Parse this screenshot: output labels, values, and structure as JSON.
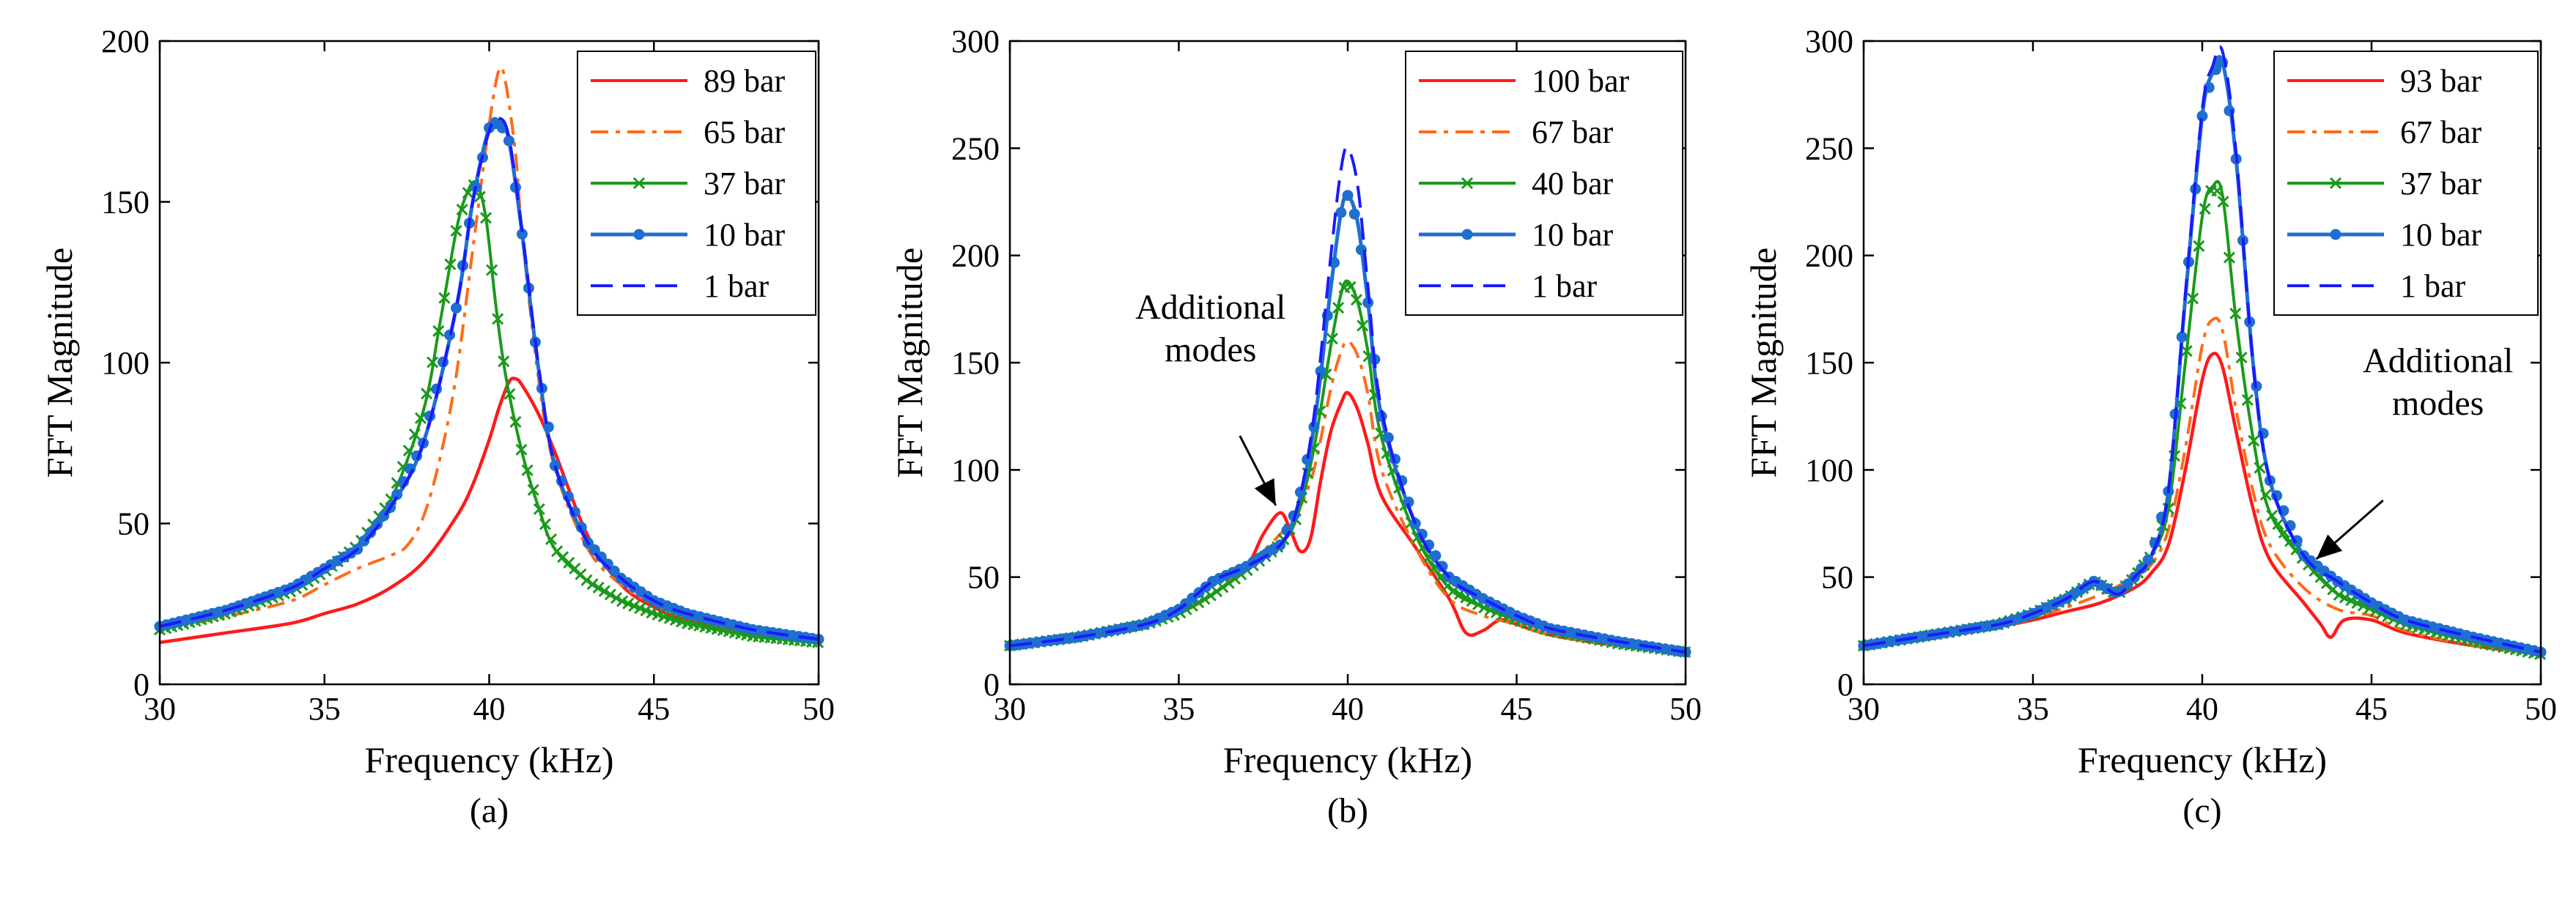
{
  "chart_data": [
    {
      "type": "line",
      "panel_label": "(a)",
      "xlabel": "Frequency (kHz)",
      "ylabel": "FFT Magnitude",
      "xlim": [
        30,
        50
      ],
      "ylim": [
        0,
        200
      ],
      "xticks": [
        30,
        35,
        40,
        45,
        50
      ],
      "yticks": [
        0,
        50,
        100,
        150,
        200
      ],
      "legend_position": "top-right",
      "annotation": null,
      "series": [
        {
          "name": "89 bar",
          "style": "solid",
          "marker": "none",
          "color": "#ff1a1a",
          "x": [
            30,
            32,
            34,
            35,
            36,
            37,
            38,
            39,
            39.5,
            40,
            40.3,
            40.6,
            40.8,
            41,
            41.5,
            42,
            43,
            44,
            45,
            46,
            48,
            50
          ],
          "y": [
            13,
            16,
            19,
            22,
            25,
            30,
            38,
            52,
            62,
            76,
            86,
            94,
            95,
            93,
            84,
            72,
            46,
            31,
            24,
            20,
            16,
            13
          ]
        },
        {
          "name": "65 bar",
          "style": "dashdot",
          "marker": "none",
          "color": "#ff6a1a",
          "x": [
            30,
            32,
            34,
            35,
            36,
            37,
            37.5,
            38,
            38.5,
            39,
            39.5,
            40,
            40.3,
            40.5,
            40.8,
            41,
            41.5,
            42,
            43,
            44,
            45,
            46,
            48,
            50
          ],
          "y": [
            17,
            21,
            26,
            31,
            36,
            40,
            43,
            52,
            70,
            96,
            135,
            174,
            191,
            187,
            165,
            140,
            95,
            67,
            42,
            31,
            25,
            21,
            16,
            13
          ]
        },
        {
          "name": "37 bar",
          "style": "solid",
          "marker": "x",
          "color": "#1a9a1a",
          "x": [
            30,
            32,
            34,
            35,
            36,
            37,
            38,
            38.5,
            39,
            39.3,
            39.6,
            39.9,
            40.2,
            40.5,
            41,
            41.5,
            42,
            43,
            44,
            45,
            46,
            48,
            50
          ],
          "y": [
            17,
            22,
            29,
            35,
            43,
            57,
            85,
            112,
            141,
            152,
            156,
            145,
            118,
            96,
            72,
            55,
            42,
            32,
            26,
            22,
            19,
            15,
            13
          ]
        },
        {
          "name": "10 bar",
          "style": "solid",
          "marker": "o",
          "color": "#1f6fd0",
          "x": [
            30,
            32,
            34,
            35,
            36,
            37,
            38,
            39,
            39.5,
            40,
            40.3,
            40.6,
            41,
            41.5,
            42,
            43,
            44,
            45,
            46,
            48,
            50
          ],
          "y": [
            18,
            23,
            30,
            36,
            42,
            55,
            75,
            117,
            150,
            173,
            175,
            169,
            140,
            98,
            68,
            44,
            33,
            26,
            22,
            17,
            14
          ]
        },
        {
          "name": "1 bar",
          "style": "dashed",
          "marker": "none",
          "color": "#1a1aff",
          "x": [
            30,
            32,
            34,
            35,
            36,
            37,
            38,
            39,
            39.5,
            40,
            40.3,
            40.6,
            41,
            41.5,
            42,
            43,
            44,
            45,
            46,
            48,
            50
          ],
          "y": [
            18,
            23,
            30,
            36,
            42,
            55,
            75,
            117,
            150,
            172,
            176,
            170,
            141,
            99,
            68,
            44,
            33,
            26,
            22,
            17,
            14
          ]
        }
      ]
    },
    {
      "type": "line",
      "panel_label": "(b)",
      "xlabel": "Frequency (kHz)",
      "ylabel": "FFT Magnitude",
      "xlim": [
        30,
        50
      ],
      "ylim": [
        0,
        300
      ],
      "xticks": [
        30,
        35,
        40,
        45,
        50
      ],
      "yticks": [
        0,
        50,
        100,
        150,
        200,
        250,
        300
      ],
      "legend_position": "top-right",
      "annotation": {
        "lines": [
          "Additional",
          "modes"
        ],
        "x": 38,
        "y": 80
      },
      "series": [
        {
          "name": "100 bar",
          "style": "solid",
          "marker": "none",
          "color": "#ff1a1a",
          "x": [
            30,
            32,
            34,
            35,
            36,
            37,
            37.5,
            38,
            38.3,
            38.6,
            38.9,
            39.2,
            39.5,
            39.8,
            40,
            40.3,
            40.6,
            41,
            42,
            43,
            43.5,
            44,
            44.5,
            45,
            46,
            48,
            50
          ],
          "y": [
            18,
            22,
            28,
            33,
            42,
            55,
            70,
            80,
            72,
            62,
            68,
            95,
            118,
            131,
            136,
            128,
            112,
            88,
            64,
            40,
            24,
            25,
            30,
            28,
            23,
            18,
            15
          ]
        },
        {
          "name": "67 bar",
          "style": "dashdot",
          "marker": "none",
          "color": "#ff6a1a",
          "x": [
            30,
            32,
            34,
            35,
            36,
            37,
            38,
            38.5,
            39,
            39.5,
            39.8,
            40,
            40.3,
            40.6,
            41,
            42,
            43,
            44,
            45,
            46,
            48,
            50
          ],
          "y": [
            18,
            22,
            28,
            33,
            42,
            55,
            70,
            80,
            100,
            138,
            155,
            160,
            153,
            135,
            100,
            64,
            40,
            32,
            28,
            23,
            18,
            15
          ]
        },
        {
          "name": "40 bar",
          "style": "solid",
          "marker": "x",
          "color": "#1a9a1a",
          "x": [
            30,
            32,
            34,
            35,
            36,
            37,
            38,
            38.5,
            39,
            39.5,
            39.8,
            40,
            40.3,
            40.6,
            41,
            42,
            43,
            44,
            45,
            46,
            48,
            50
          ],
          "y": [
            18,
            22,
            28,
            33,
            42,
            53,
            65,
            78,
            110,
            158,
            182,
            188,
            178,
            155,
            115,
            70,
            45,
            36,
            30,
            25,
            19,
            15
          ]
        },
        {
          "name": "10 bar",
          "style": "solid",
          "marker": "o",
          "color": "#1f6fd0",
          "x": [
            30,
            32,
            34,
            35,
            36,
            37,
            38,
            38.5,
            39,
            39.5,
            39.8,
            40,
            40.3,
            40.6,
            41,
            42,
            43,
            44,
            45,
            46,
            48,
            50
          ],
          "y": [
            18,
            22,
            28,
            35,
            48,
            55,
            65,
            82,
            120,
            185,
            220,
            228,
            215,
            178,
            125,
            75,
            50,
            40,
            32,
            26,
            20,
            15
          ]
        },
        {
          "name": "1 bar",
          "style": "dashed",
          "marker": "none",
          "color": "#1a1aff",
          "x": [
            30,
            32,
            34,
            35,
            36,
            37,
            38,
            38.5,
            39,
            39.5,
            39.8,
            40,
            40.3,
            40.6,
            41,
            42,
            43,
            44,
            45,
            46,
            48,
            50
          ],
          "y": [
            18,
            22,
            28,
            35,
            48,
            55,
            65,
            82,
            125,
            200,
            240,
            250,
            232,
            185,
            128,
            75,
            50,
            40,
            32,
            26,
            20,
            15
          ]
        }
      ]
    },
    {
      "type": "line",
      "panel_label": "(c)",
      "xlabel": "Frequency (kHz)",
      "ylabel": "FFT Magnitude",
      "xlim": [
        30,
        50
      ],
      "ylim": [
        0,
        300
      ],
      "xticks": [
        30,
        35,
        40,
        45,
        50
      ],
      "yticks": [
        0,
        50,
        100,
        150,
        200,
        250,
        300
      ],
      "legend_position": "top-right",
      "annotation": {
        "lines": [
          "Additional",
          "modes"
        ],
        "x": 43.5,
        "y": 55
      },
      "series": [
        {
          "name": "93 bar",
          "style": "solid",
          "marker": "none",
          "color": "#ff1a1a",
          "x": [
            30,
            32,
            34,
            35,
            36,
            37,
            38,
            38.5,
            39,
            39.5,
            40,
            40.3,
            40.6,
            41,
            41.5,
            42,
            43,
            43.5,
            43.8,
            44.2,
            45,
            46,
            48,
            50
          ],
          "y": [
            18,
            22,
            27,
            30,
            34,
            38,
            45,
            52,
            65,
            100,
            142,
            154,
            148,
            118,
            82,
            58,
            38,
            28,
            22,
            30,
            30,
            24,
            18,
            14
          ]
        },
        {
          "name": "67 bar",
          "style": "dashdot",
          "marker": "none",
          "color": "#ff6a1a",
          "x": [
            30,
            32,
            34,
            35,
            36,
            37,
            38,
            38.5,
            39,
            39.5,
            40,
            40.3,
            40.6,
            41,
            41.5,
            42,
            43,
            44,
            45,
            46,
            48,
            50
          ],
          "y": [
            18,
            22,
            27,
            31,
            36,
            42,
            50,
            56,
            72,
            110,
            158,
            170,
            165,
            128,
            90,
            65,
            45,
            35,
            32,
            25,
            18,
            14
          ]
        },
        {
          "name": "37 bar",
          "style": "solid",
          "marker": "x",
          "color": "#1a9a1a",
          "x": [
            30,
            32,
            34,
            35,
            36,
            36.8,
            37.5,
            38,
            38.5,
            39,
            39.5,
            40,
            40.3,
            40.6,
            41,
            41.5,
            42,
            43,
            44,
            45,
            46,
            48,
            50
          ],
          "y": [
            18,
            23,
            28,
            33,
            40,
            48,
            42,
            50,
            60,
            82,
            150,
            218,
            232,
            228,
            170,
            115,
            80,
            58,
            42,
            35,
            28,
            20,
            14
          ]
        },
        {
          "name": "10 bar",
          "style": "solid",
          "marker": "o",
          "color": "#1f6fd0",
          "x": [
            30,
            32,
            34,
            35,
            36,
            36.8,
            37.5,
            38,
            38.5,
            39,
            39.5,
            40,
            40.3,
            40.6,
            41,
            41.5,
            42,
            43,
            44,
            45,
            46,
            48,
            50
          ],
          "y": [
            18,
            23,
            28,
            33,
            40,
            48,
            42,
            50,
            60,
            90,
            180,
            265,
            285,
            290,
            245,
            150,
            95,
            60,
            48,
            38,
            30,
            22,
            15
          ]
        },
        {
          "name": "1 bar",
          "style": "dashed",
          "marker": "none",
          "color": "#1a1aff",
          "x": [
            30,
            32,
            34,
            35,
            36,
            36.8,
            37.5,
            38,
            38.5,
            39,
            39.5,
            40,
            40.3,
            40.6,
            41,
            41.5,
            42,
            43,
            44,
            45,
            46,
            48,
            50
          ],
          "y": [
            18,
            23,
            28,
            33,
            40,
            48,
            42,
            50,
            60,
            90,
            182,
            268,
            288,
            295,
            248,
            150,
            95,
            60,
            48,
            38,
            30,
            22,
            15
          ]
        }
      ]
    }
  ]
}
